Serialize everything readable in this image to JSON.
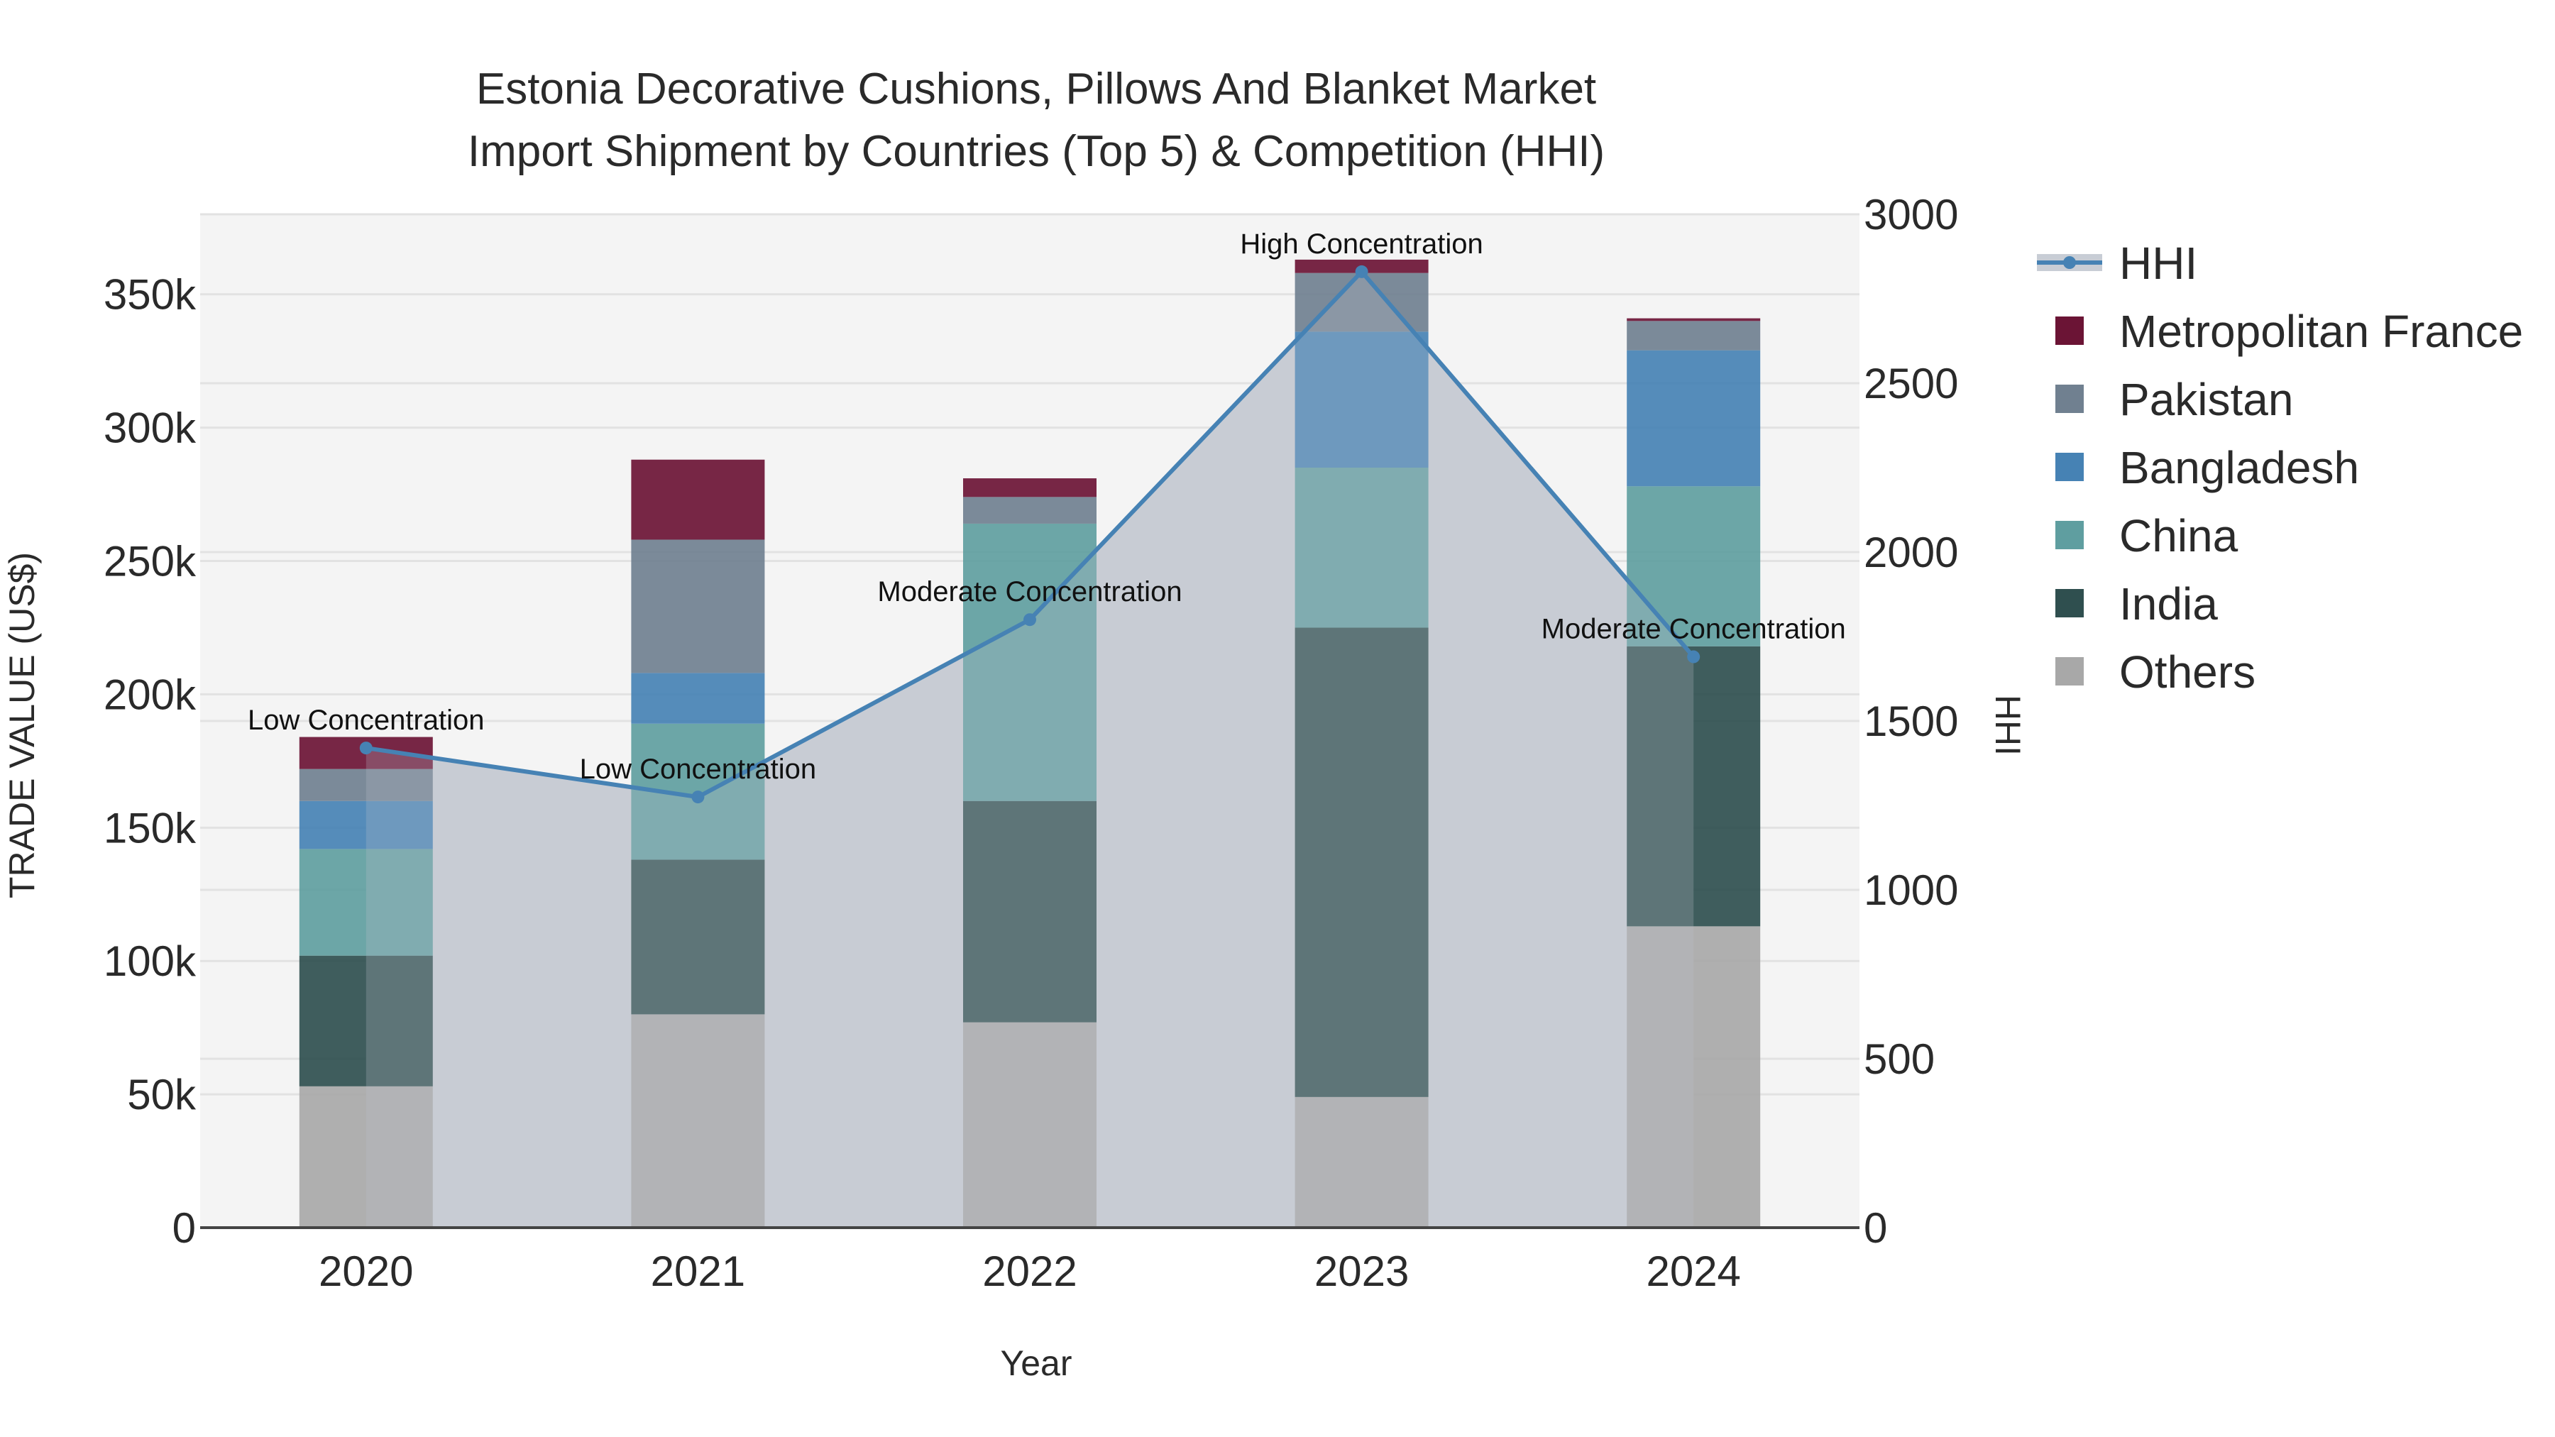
{
  "chart_data": {
    "type": "bar",
    "title": "Estonia Decorative Cushions, Pillows And Blanket Market",
    "subtitle": "Import Shipment by Countries (Top 5) & Competition (HHI)",
    "xlabel": "Year",
    "ylabel": "TRADE VALUE (US$)",
    "y2label": "HHI",
    "categories": [
      "2020",
      "2021",
      "2022",
      "2023",
      "2024"
    ],
    "ylim": [
      0,
      380000
    ],
    "y2lim": [
      0,
      3000
    ],
    "yticks": [
      0,
      50000,
      100000,
      150000,
      200000,
      250000,
      300000,
      350000
    ],
    "ytick_labels": [
      "0",
      "50k",
      "100k",
      "150k",
      "200k",
      "250k",
      "300k",
      "350k"
    ],
    "y2ticks": [
      0,
      500,
      1000,
      1500,
      2000,
      2500,
      3000
    ],
    "y2tick_labels": [
      "0",
      "500",
      "1000",
      "1500",
      "2000",
      "2500",
      "3000"
    ],
    "series": [
      {
        "name": "Others",
        "color": "#a8a8a8",
        "values": [
          53000,
          80000,
          77000,
          49000,
          113000
        ]
      },
      {
        "name": "India",
        "color": "#2f4f4f",
        "values": [
          49000,
          58000,
          83000,
          176000,
          105000
        ]
      },
      {
        "name": "China",
        "color": "#5f9ea0",
        "values": [
          40000,
          51000,
          104000,
          60000,
          60000
        ]
      },
      {
        "name": "Bangladesh",
        "color": "#4682b4",
        "values": [
          18000,
          19000,
          0,
          51000,
          51000
        ]
      },
      {
        "name": "Pakistan",
        "color": "#708090",
        "values": [
          12000,
          50000,
          10000,
          22000,
          11000
        ]
      },
      {
        "name": "Metropolitan France",
        "color": "#6b1435",
        "values": [
          12000,
          30000,
          7000,
          5000,
          1000
        ]
      }
    ],
    "hhi": {
      "name": "HHI",
      "color": "#4682b4",
      "values": [
        1420,
        1275,
        1800,
        2830,
        1690
      ],
      "labels": [
        "Low Concentration",
        "Low Concentration",
        "Moderate Concentration",
        "High Concentration",
        "Moderate Concentration"
      ]
    },
    "legend": [
      "HHI",
      "Metropolitan France",
      "Pakistan",
      "Bangladesh",
      "China",
      "India",
      "Others"
    ],
    "legend_position": "right",
    "grid": true
  }
}
